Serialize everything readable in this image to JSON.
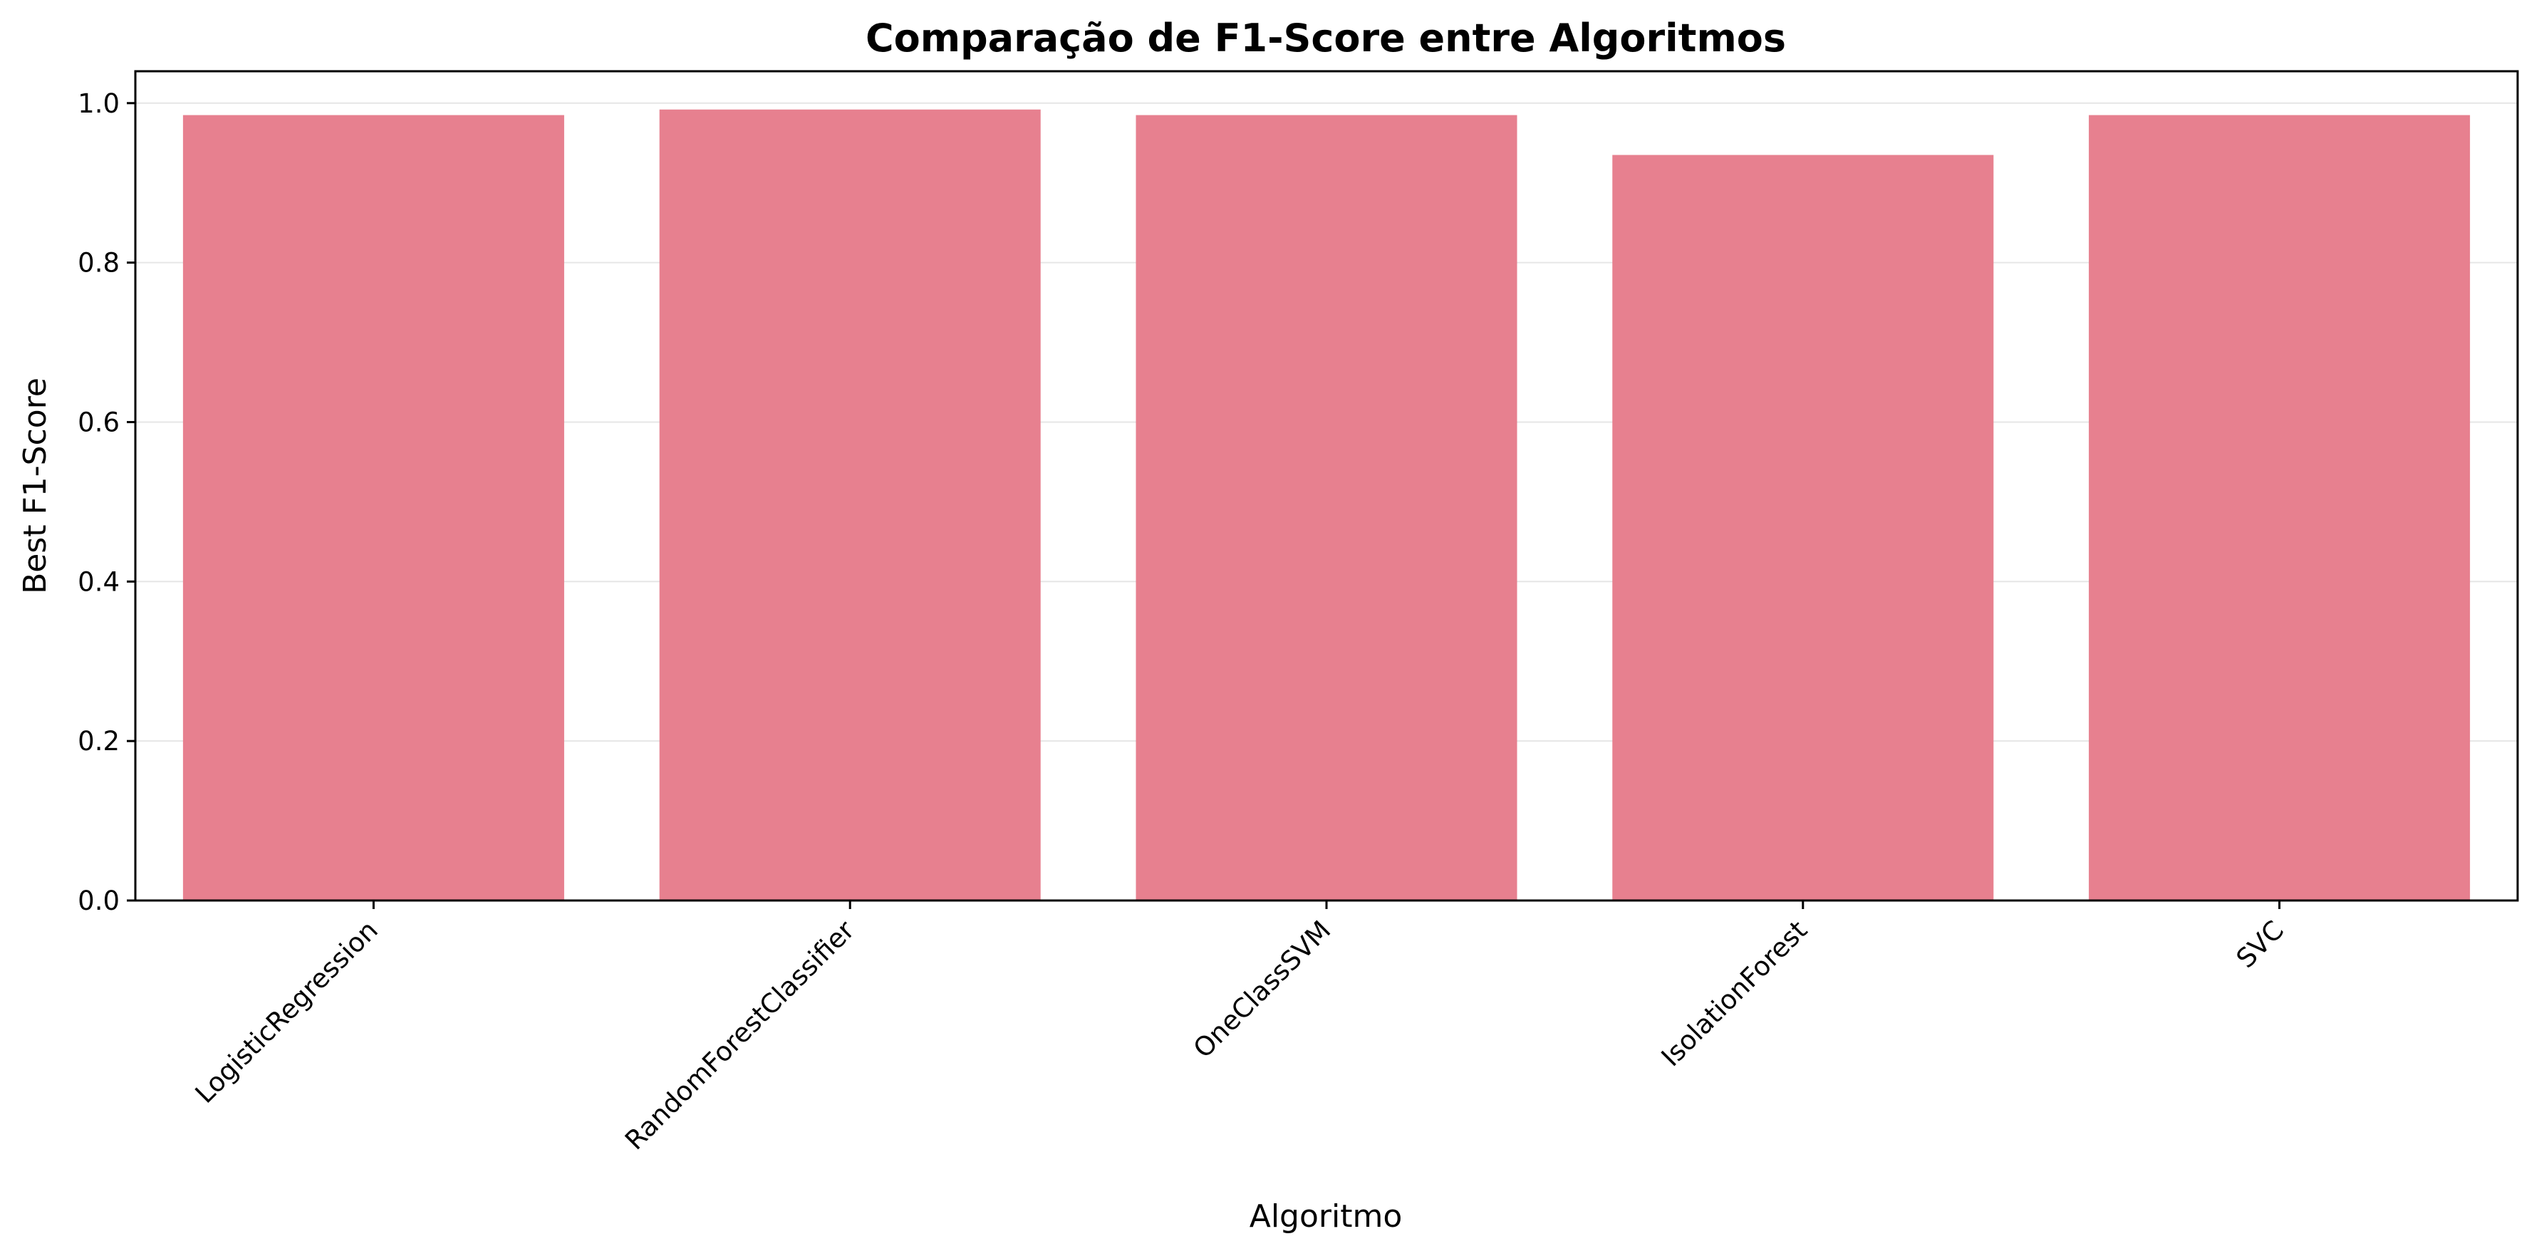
{
  "chart_data": {
    "type": "bar",
    "title": "Comparação de F1-Score entre Algoritmos",
    "xlabel": "Algoritmo",
    "ylabel": "Best F1-Score",
    "categories": [
      "LogisticRegression",
      "RandomForestClassifier",
      "OneClassSVM",
      "IsolationForest",
      "SVC"
    ],
    "values": [
      0.985,
      0.992,
      0.985,
      0.935,
      0.985
    ],
    "ylim": [
      0,
      1.04
    ],
    "yticks": [
      0.0,
      0.2,
      0.4,
      0.6,
      0.8,
      1.0
    ],
    "ytick_labels": [
      "0.0",
      "0.2",
      "0.4",
      "0.6",
      "0.8",
      "1.0"
    ],
    "bar_color": "#e7808f",
    "grid": "horizontal",
    "legend": "none"
  }
}
